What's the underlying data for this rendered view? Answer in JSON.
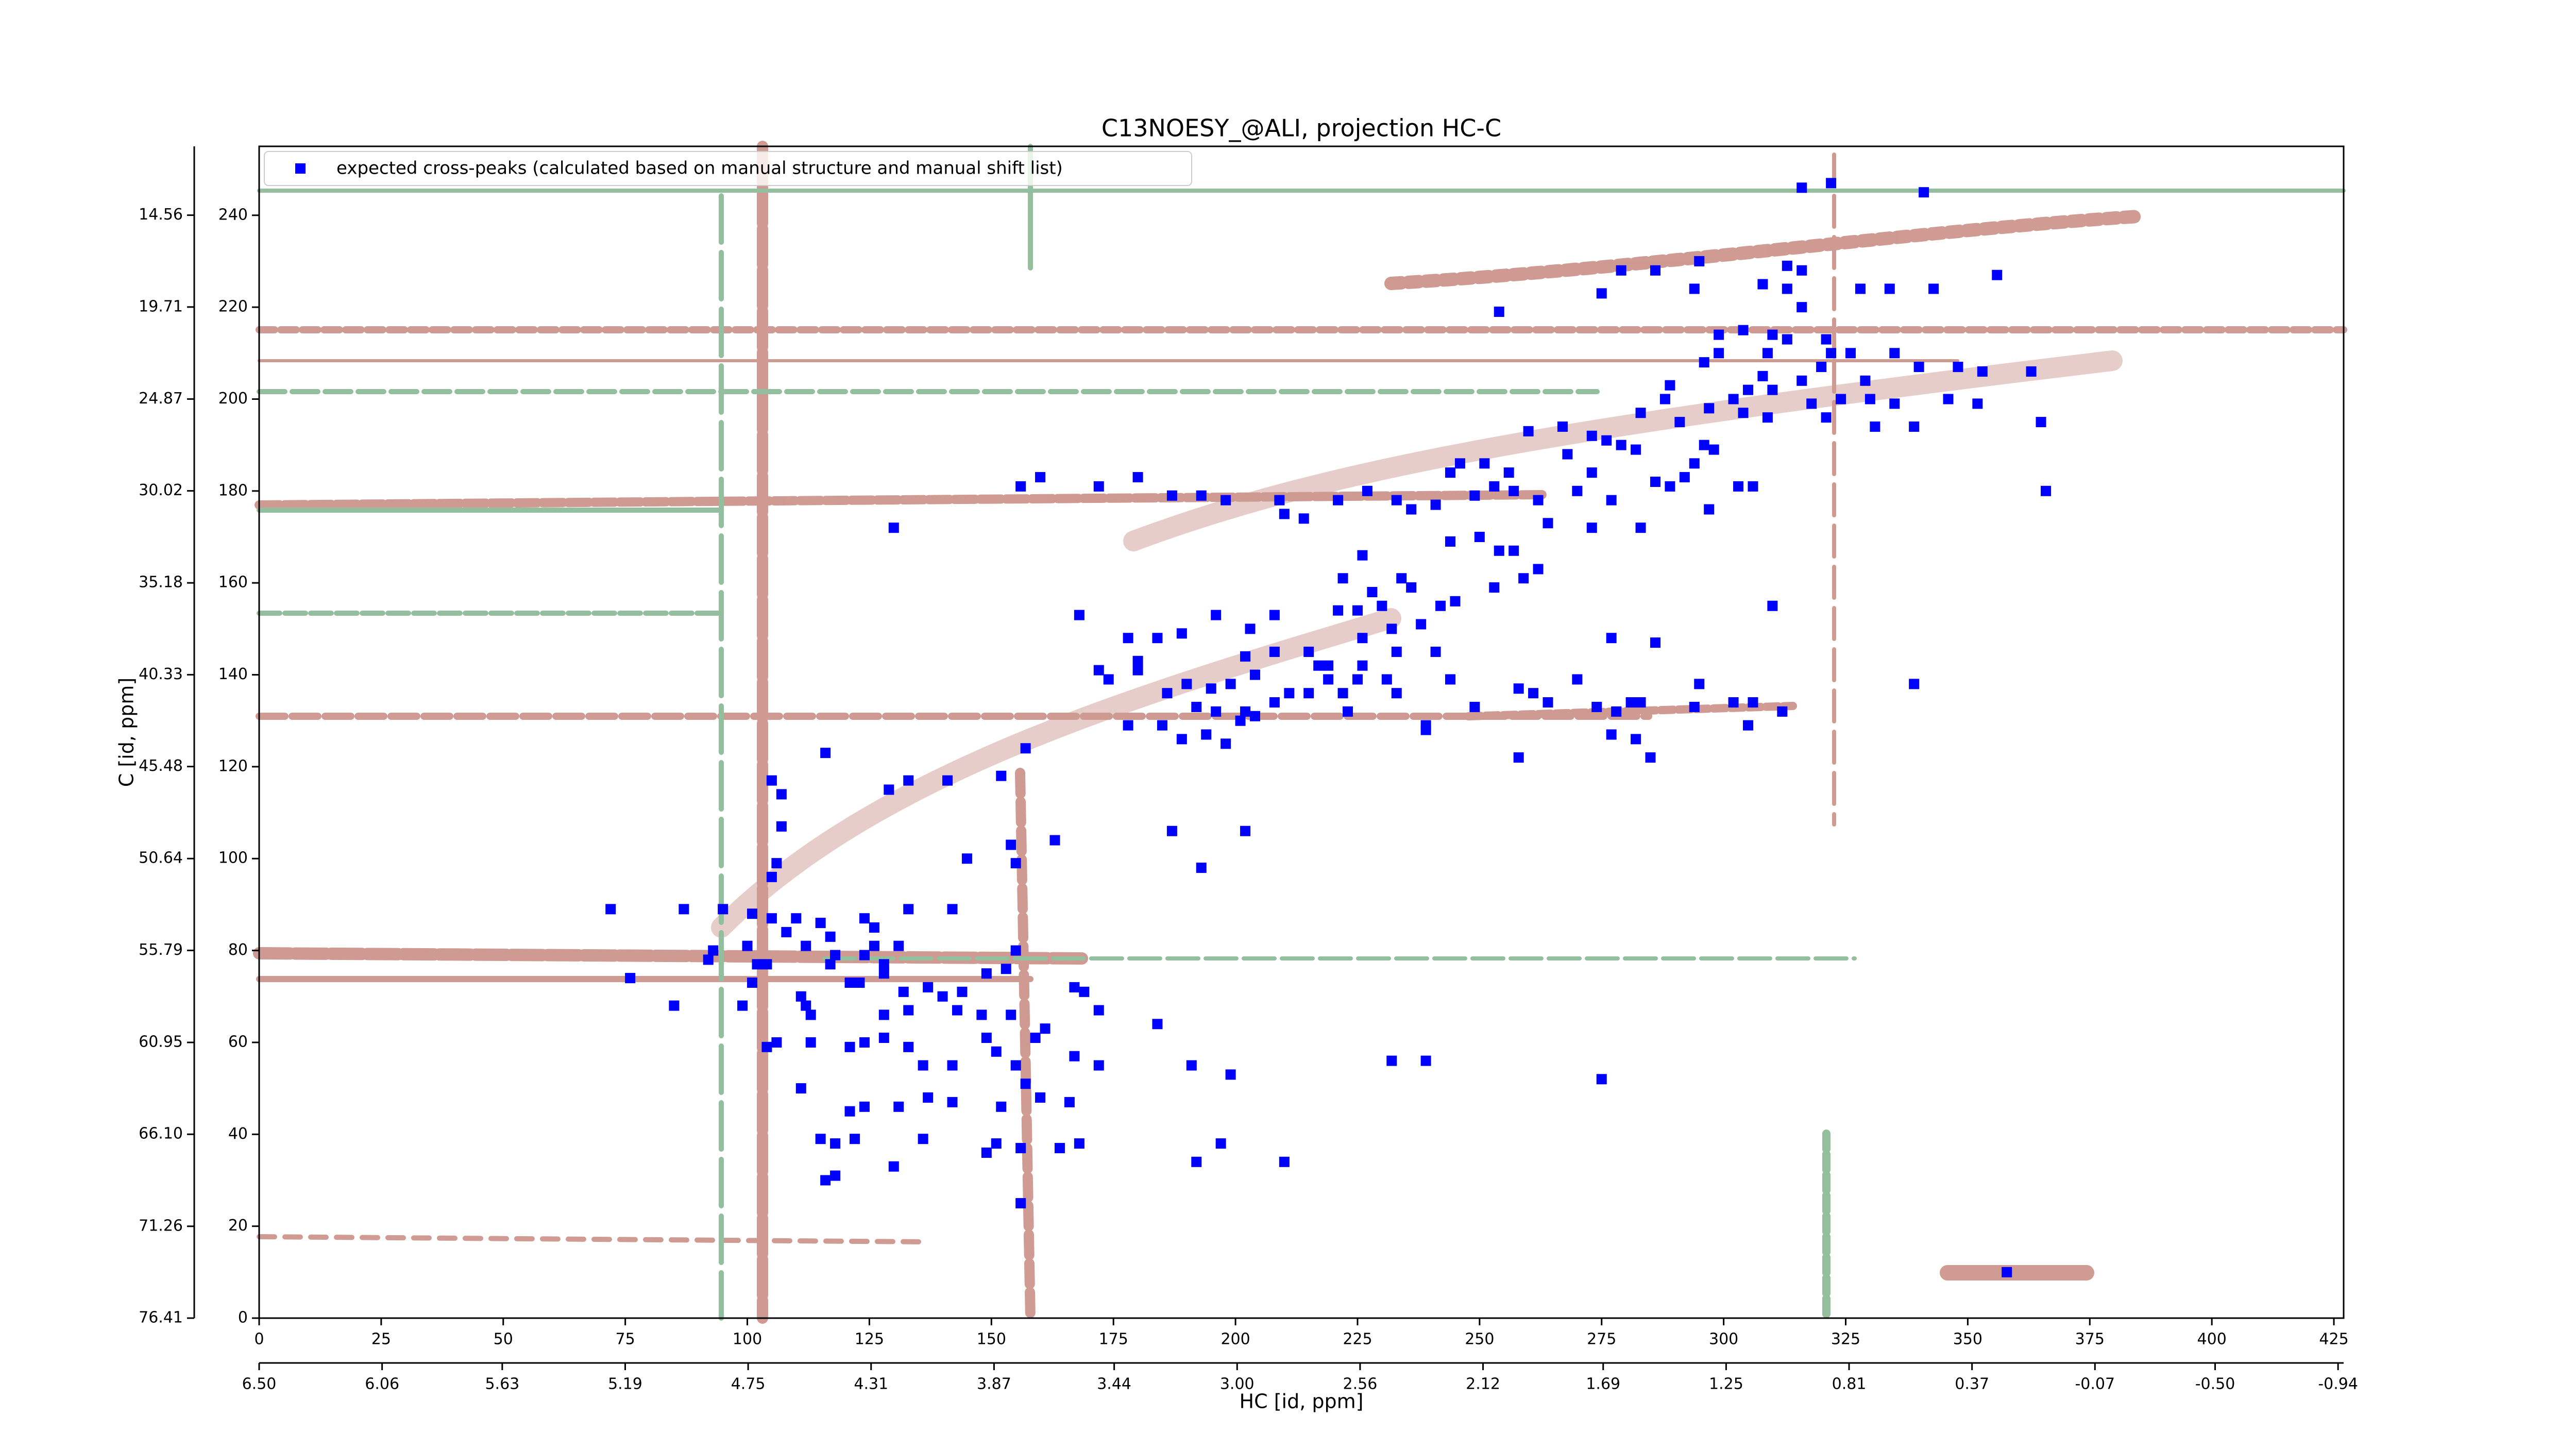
{
  "chart_data": {
    "type": "scatter",
    "title": "C13NOESY_@ALI, projection HC-C",
    "xlabel": "HC [id, ppm]",
    "ylabel": "C [id, ppm]",
    "xlim": [
      0,
      427
    ],
    "ylim": [
      0,
      255
    ],
    "xticks": [
      0,
      25,
      50,
      75,
      100,
      125,
      150,
      175,
      200,
      225,
      250,
      275,
      300,
      325,
      350,
      375,
      400,
      425
    ],
    "yticks": [
      0,
      20,
      40,
      60,
      80,
      100,
      120,
      140,
      160,
      180,
      200,
      220,
      240
    ],
    "x2lim": [
      6.5,
      -0.96
    ],
    "x2ticks": [
      {
        "value": 6.5,
        "label": "6.50"
      },
      6.06,
      5.63,
      5.19,
      4.75,
      4.31,
      3.87,
      3.44,
      {
        "value": 3.0,
        "label": "3.00"
      },
      2.56,
      2.12,
      1.69,
      1.25,
      0.81,
      0.37,
      -0.07,
      {
        "value": -0.5,
        "label": "-0.50"
      },
      -0.94
    ],
    "y2lim": [
      76.41,
      10.7
    ],
    "y2ticks": [
      76.41,
      71.26,
      {
        "value": 66.1,
        "label": "66.10"
      },
      60.95,
      55.79,
      50.64,
      45.48,
      40.33,
      35.18,
      30.02,
      24.87,
      19.71,
      14.56
    ],
    "legend": "upper left",
    "series": [
      {
        "name": "expected cross-peaks (calculated based on manual structure and manual shift list)",
        "color": "#0000ff",
        "x": [
          316,
          322,
          341,
          295,
          313,
          316,
          279,
          286,
          294,
          308,
          313,
          328,
          334,
          343,
          356,
          275,
          254,
          316,
          304,
          310,
          313,
          299,
          321,
          322,
          326,
          299,
          296,
          309,
          335,
          348,
          320,
          308,
          316,
          329,
          340,
          353,
          363,
          289,
          305,
          310,
          302,
          318,
          324,
          297,
          304,
          330,
          335,
          346,
          352,
          365,
          309,
          321,
          331,
          339,
          288,
          283,
          291,
          296,
          298,
          273,
          276,
          282,
          279,
          267,
          260,
          294,
          251,
          256,
          257,
          253,
          246,
          244,
          249,
          268,
          273,
          289,
          286,
          292,
          297,
          303,
          306,
          270,
          277,
          283,
          366,
          262,
          264,
          273,
          257,
          262,
          236,
          233,
          241,
          244,
          250,
          254,
          259,
          227,
          221,
          226,
          222,
          234,
          236,
          228,
          230,
          225,
          242,
          221,
          253,
          310,
          277,
          286,
          339,
          245,
          226,
          238,
          232,
          233,
          241,
          244,
          249,
          239,
          258,
          261,
          264,
          270,
          274,
          278,
          281,
          283,
          294,
          295,
          302,
          306,
          312,
          305,
          282,
          285,
          277,
          258,
          130,
          156,
          160,
          172,
          180,
          187,
          193,
          198,
          209,
          210,
          214,
          168,
          178,
          172,
          180,
          180,
          174,
          184,
          189,
          196,
          203,
          208,
          202,
          204,
          199,
          195,
          208,
          215,
          217,
          219,
          215,
          222,
          226,
          211,
          202,
          196,
          201,
          192,
          186,
          190,
          185,
          178,
          189,
          194,
          198,
          204,
          208,
          223,
          231,
          233,
          225,
          219,
          239,
          157,
          152,
          141,
          133,
          129,
          116,
          105,
          107,
          107,
          106,
          105,
          154,
          163,
          187,
          193,
          202,
          145,
          155,
          133,
          142,
          115,
          124,
          117,
          126,
          118,
          126,
          131,
          128,
          112,
          110,
          108,
          105,
          101,
          100,
          102,
          95,
          93,
          87,
          72,
          76,
          85,
          99,
          92,
          104,
          112,
          117,
          121,
          123,
          124,
          128,
          132,
          137,
          140,
          144,
          149,
          153,
          155,
          143,
          148,
          154,
          133,
          128,
          124,
          128,
          133,
          136,
          142,
          149,
          151,
          155,
          161,
          167,
          169,
          172,
          184,
          167,
          172,
          159,
          191,
          199,
          157,
          160,
          166,
          152,
          142,
          131,
          137,
          121,
          124,
          113,
          111,
          106,
          104,
          111,
          115,
          122,
          121,
          118,
          130,
          116,
          118,
          136,
          149,
          151,
          156,
          164,
          168,
          192,
          210,
          197,
          156,
          232,
          239,
          275,
          358,
          113,
          101
        ],
        "y": [
          246,
          247,
          245,
          230,
          229,
          228,
          228,
          228,
          224,
          225,
          224,
          224,
          224,
          224,
          227,
          223,
          219,
          220,
          215,
          214,
          213,
          214,
          213,
          210,
          210,
          210,
          208,
          210,
          210,
          207,
          207,
          205,
          204,
          204,
          207,
          206,
          206,
          203,
          202,
          202,
          200,
          199,
          200,
          198,
          197,
          200,
          199,
          200,
          199,
          195,
          196,
          196,
          194,
          194,
          200,
          197,
          195,
          190,
          189,
          192,
          191,
          189,
          190,
          194,
          193,
          186,
          186,
          184,
          180,
          181,
          186,
          184,
          179,
          188,
          184,
          181,
          182,
          183,
          176,
          181,
          181,
          180,
          178,
          172,
          180,
          178,
          173,
          172,
          167,
          163,
          176,
          178,
          177,
          169,
          170,
          167,
          161,
          180,
          178,
          166,
          161,
          161,
          159,
          158,
          155,
          154,
          155,
          154,
          159,
          155,
          148,
          147,
          138,
          156,
          148,
          151,
          150,
          145,
          145,
          139,
          133,
          128,
          122,
          136,
          134,
          139,
          133,
          132,
          134,
          134,
          133,
          138,
          134,
          134,
          132,
          129,
          126,
          122,
          127,
          137,
          172,
          181,
          183,
          181,
          183,
          179,
          179,
          178,
          178,
          175,
          174,
          153,
          148,
          141,
          143,
          141,
          139,
          148,
          149,
          153,
          150,
          153,
          144,
          140,
          138,
          137,
          145,
          145,
          142,
          139,
          136,
          136,
          142,
          136,
          132,
          132,
          130,
          133,
          136,
          138,
          129,
          129,
          126,
          127,
          125,
          131,
          134,
          132,
          139,
          136,
          139,
          142,
          129,
          124,
          118,
          117,
          117,
          115,
          123,
          117,
          114,
          107,
          99,
          96,
          103,
          104,
          106,
          98,
          106,
          100,
          99,
          89,
          89,
          86,
          87,
          83,
          85,
          79,
          81,
          81,
          77,
          81,
          87,
          84,
          87,
          88,
          81,
          77,
          89,
          80,
          89,
          89,
          74,
          68,
          68,
          78,
          77,
          68,
          77,
          73,
          73,
          79,
          75,
          71,
          72,
          70,
          71,
          75,
          76,
          80,
          67,
          66,
          66,
          67,
          66,
          60,
          61,
          59,
          55,
          55,
          61,
          58,
          55,
          63,
          72,
          71,
          67,
          64,
          57,
          55,
          61,
          55,
          53,
          51,
          48,
          47,
          46,
          47,
          46,
          48,
          59,
          46,
          60,
          50,
          60,
          59,
          70,
          39,
          39,
          45,
          38,
          33,
          30,
          31,
          39,
          36,
          38,
          37,
          37,
          38,
          34,
          34,
          38,
          25,
          56,
          56,
          52,
          10,
          66,
          73
        ]
      }
    ]
  }
}
